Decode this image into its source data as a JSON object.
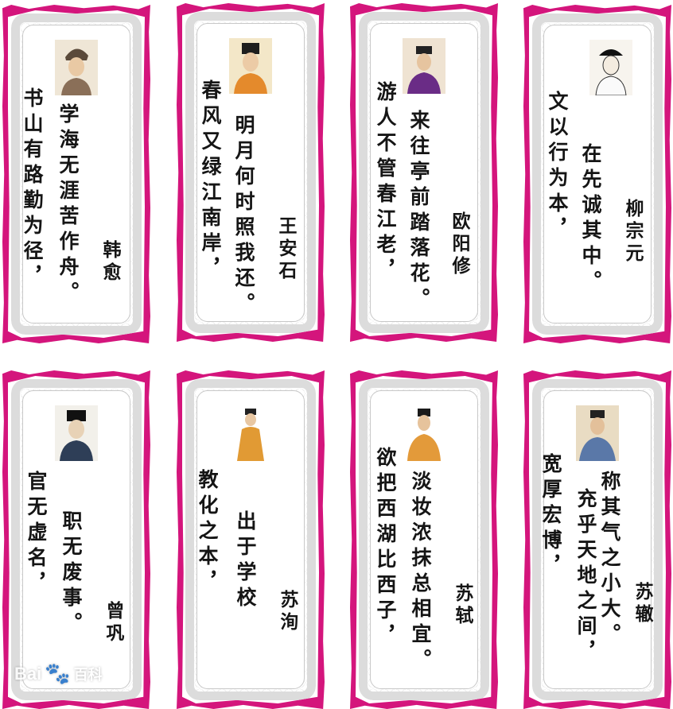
{
  "colors": {
    "border": "#d4157c",
    "paper": "#ffffff",
    "ink": "#151515"
  },
  "cards": [
    {
      "line1": "学海无涯苦作舟。",
      "line2": "书山有路勤为径，",
      "author": "韩愈"
    },
    {
      "line1": "明月何时照我还。",
      "line2": "春风又绿江南岸，",
      "author": "王安石"
    },
    {
      "line1": "来往亭前踏落花。",
      "line2": "游人不管春江老，",
      "author": "欧阳修"
    },
    {
      "line1": "在先诚其中。",
      "line2": "文以行为本，",
      "author": "柳宗元"
    },
    {
      "line1": "职无废事。",
      "line2": "官无虚名，",
      "author": "曾巩"
    },
    {
      "line1": "出于学校",
      "line2": "教化之本，",
      "author": "苏洵"
    },
    {
      "line1": "淡妆浓抹总相宜。",
      "line2": "欲把西湖比西子，",
      "author": "苏轼"
    },
    {
      "line1": "充乎天地之间，",
      "line1b": "称其气之小大。",
      "line2": "宽厚宏博，",
      "author": "苏辙"
    }
  ],
  "watermark": {
    "brand": "Bai",
    "brand_cn": "百科"
  }
}
